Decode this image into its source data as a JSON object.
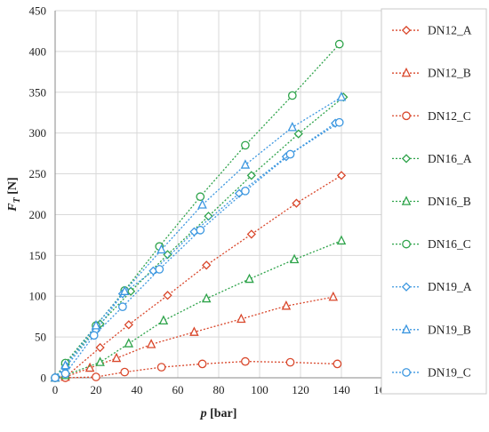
{
  "chart_data": {
    "type": "line",
    "xlabel": "p [bar]",
    "ylabel": "F_T [N]",
    "xlim": [
      0,
      160
    ],
    "ylim": [
      0,
      450
    ],
    "xticks": [
      0,
      20,
      40,
      60,
      80,
      100,
      120,
      140,
      160
    ],
    "yticks": [
      0,
      50,
      100,
      150,
      200,
      250,
      300,
      350,
      400,
      450
    ],
    "grid": true,
    "legend_position": "right",
    "series": [
      {
        "name": "DN12_A",
        "color": "#d9472b",
        "marker": "diamond",
        "x": [
          0,
          5,
          22,
          36,
          55,
          74,
          96,
          118,
          140
        ],
        "y": [
          0,
          1,
          37,
          65,
          101,
          138,
          176,
          214,
          248
        ]
      },
      {
        "name": "DN12_B",
        "color": "#d9472b",
        "marker": "triangle",
        "x": [
          0,
          5,
          17,
          30,
          47,
          68,
          91,
          113,
          136
        ],
        "y": [
          0,
          1,
          12,
          24,
          41,
          56,
          72,
          88,
          99
        ]
      },
      {
        "name": "DN12_C",
        "color": "#d9472b",
        "marker": "circle",
        "x": [
          0,
          5,
          20,
          34,
          52,
          72,
          93,
          115,
          138
        ],
        "y": [
          0,
          0,
          1,
          7,
          13,
          17,
          20,
          19,
          17
        ]
      },
      {
        "name": "DN16_A",
        "color": "#2ea34a",
        "marker": "diamond",
        "x": [
          0,
          5,
          22,
          37,
          55,
          75,
          96,
          119,
          141
        ],
        "y": [
          0,
          16,
          66,
          106,
          151,
          198,
          248,
          299,
          344
        ]
      },
      {
        "name": "DN16_B",
        "color": "#2ea34a",
        "marker": "triangle",
        "x": [
          0,
          5,
          22,
          36,
          53,
          74,
          95,
          117,
          140
        ],
        "y": [
          0,
          3,
          19,
          42,
          70,
          97,
          121,
          145,
          168
        ]
      },
      {
        "name": "DN16_C",
        "color": "#2ea34a",
        "marker": "circle",
        "x": [
          0,
          5,
          20,
          34,
          51,
          71,
          93,
          116,
          139
        ],
        "y": [
          0,
          18,
          64,
          107,
          161,
          222,
          285,
          346,
          409
        ]
      },
      {
        "name": "DN19_A",
        "color": "#3c97e0",
        "marker": "diamond",
        "x": [
          0,
          5,
          20,
          33,
          48,
          68,
          90,
          113,
          137
        ],
        "y": [
          0,
          13,
          58,
          103,
          131,
          179,
          226,
          271,
          312
        ]
      },
      {
        "name": "DN19_B",
        "color": "#3c97e0",
        "marker": "triangle",
        "x": [
          0,
          5,
          20,
          34,
          52,
          72,
          93,
          116,
          140
        ],
        "y": [
          0,
          15,
          64,
          106,
          157,
          212,
          261,
          307,
          344
        ]
      },
      {
        "name": "DN19_C",
        "color": "#3c97e0",
        "marker": "circle",
        "x": [
          0,
          5,
          19,
          33,
          51,
          71,
          93,
          115,
          139
        ],
        "y": [
          0,
          5,
          52,
          87,
          133,
          181,
          229,
          274,
          313
        ]
      }
    ]
  }
}
